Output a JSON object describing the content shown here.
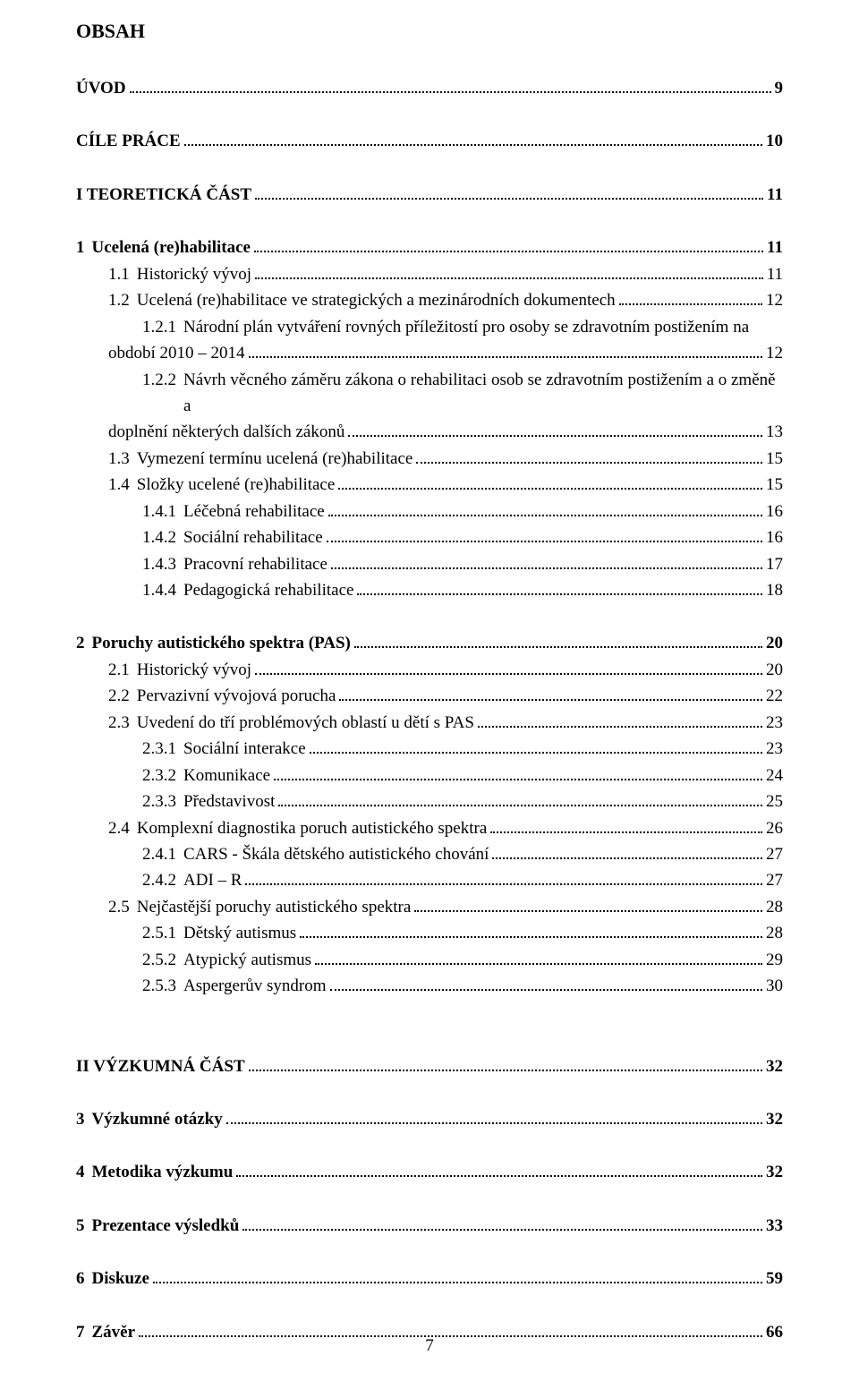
{
  "title": "OBSAH",
  "footer_page": "7",
  "toc": [
    {
      "type": "line",
      "bold": true,
      "indent": 0,
      "num": "",
      "label": "ÚVOD",
      "page": "9"
    },
    {
      "type": "gap",
      "size": "md"
    },
    {
      "type": "line",
      "bold": true,
      "indent": 0,
      "num": "",
      "label": "CÍLE PRÁCE",
      "page": "10"
    },
    {
      "type": "gap",
      "size": "md"
    },
    {
      "type": "line",
      "bold": true,
      "indent": 0,
      "num": "",
      "label": "I TEORETICKÁ ČÁST",
      "page": "11"
    },
    {
      "type": "gap",
      "size": "md"
    },
    {
      "type": "line",
      "bold": true,
      "indent": 0,
      "num": "1",
      "label": "Ucelená (re)habilitace",
      "page": "11"
    },
    {
      "type": "line",
      "bold": false,
      "indent": 1,
      "num": "1.1",
      "label": "Historický vývoj",
      "page": "11"
    },
    {
      "type": "line",
      "bold": false,
      "indent": 1,
      "num": "1.2",
      "label": "Ucelená (re)habilitace ve strategických a mezinárodních dokumentech",
      "page": "12"
    },
    {
      "type": "multi",
      "bold": false,
      "indent": 2,
      "num": "1.2.1",
      "line1": "Národní plán vytváření rovných příležitostí pro osoby se zdravotním postižením na",
      "line2": "období  2010 – 2014",
      "page": "12",
      "hang_indent": 36
    },
    {
      "type": "multi",
      "bold": false,
      "indent": 2,
      "num": "1.2.2",
      "line1": "Návrh věcného záměru zákona o rehabilitaci osob se zdravotním postižením a o změně a",
      "line2": "doplnění některých dalších zákonů",
      "page": "13",
      "hang_indent": 36
    },
    {
      "type": "line",
      "bold": false,
      "indent": 1,
      "num": "1.3",
      "label": "Vymezení termínu ucelená (re)habilitace",
      "page": "15"
    },
    {
      "type": "line",
      "bold": false,
      "indent": 1,
      "num": "1.4",
      "label": "Složky ucelené (re)habilitace",
      "page": "15"
    },
    {
      "type": "line",
      "bold": false,
      "indent": 2,
      "num": "1.4.1",
      "label": "Léčebná rehabilitace",
      "page": "16"
    },
    {
      "type": "line",
      "bold": false,
      "indent": 2,
      "num": "1.4.2",
      "label": "Sociální rehabilitace",
      "page": "16"
    },
    {
      "type": "line",
      "bold": false,
      "indent": 2,
      "num": "1.4.3",
      "label": "Pracovní rehabilitace",
      "page": "17"
    },
    {
      "type": "line",
      "bold": false,
      "indent": 2,
      "num": "1.4.4",
      "label": "Pedagogická rehabilitace",
      "page": "18"
    },
    {
      "type": "gap",
      "size": "md"
    },
    {
      "type": "line",
      "bold": true,
      "indent": 0,
      "num": "2",
      "label": "Poruchy autistického spektra (PAS)",
      "page": "20"
    },
    {
      "type": "line",
      "bold": false,
      "indent": 1,
      "num": "2.1",
      "label": "Historický vývoj",
      "page": "20"
    },
    {
      "type": "line",
      "bold": false,
      "indent": 1,
      "num": "2.2",
      "label": "Pervazivní vývojová porucha",
      "page": "22"
    },
    {
      "type": "line",
      "bold": false,
      "indent": 1,
      "num": "2.3",
      "label": "Uvedení do tří problémových oblastí u dětí s PAS",
      "page": "23"
    },
    {
      "type": "line",
      "bold": false,
      "indent": 2,
      "num": "2.3.1",
      "label": "Sociální interakce",
      "page": "23"
    },
    {
      "type": "line",
      "bold": false,
      "indent": 2,
      "num": "2.3.2",
      "label": "Komunikace",
      "page": "24"
    },
    {
      "type": "line",
      "bold": false,
      "indent": 2,
      "num": "2.3.3",
      "label": "Představivost",
      "page": "25"
    },
    {
      "type": "line",
      "bold": false,
      "indent": 1,
      "num": "2.4",
      "label": "Komplexní diagnostika poruch autistického spektra",
      "page": "26"
    },
    {
      "type": "line",
      "bold": false,
      "indent": 2,
      "num": "2.4.1",
      "label": "CARS - Škála dětského autistického chování",
      "page": "27"
    },
    {
      "type": "line",
      "bold": false,
      "indent": 2,
      "num": "2.4.2",
      "label": "ADI – R",
      "page": "27"
    },
    {
      "type": "line",
      "bold": false,
      "indent": 1,
      "num": "2.5",
      "label": "Nejčastější poruchy autistického spektra",
      "page": "28"
    },
    {
      "type": "line",
      "bold": false,
      "indent": 2,
      "num": "2.5.1",
      "label": "Dětský autismus",
      "page": "28"
    },
    {
      "type": "line",
      "bold": false,
      "indent": 2,
      "num": "2.5.2",
      "label": "Atypický autismus",
      "page": "29"
    },
    {
      "type": "line",
      "bold": false,
      "indent": 2,
      "num": "2.5.3",
      "label": "Aspergerův syndrom",
      "page": "30"
    },
    {
      "type": "gap",
      "size": "md"
    },
    {
      "type": "gap",
      "size": "md"
    },
    {
      "type": "line",
      "bold": true,
      "indent": 0,
      "num": "",
      "label": "II VÝZKUMNÁ ČÁST",
      "page": "32"
    },
    {
      "type": "gap",
      "size": "md"
    },
    {
      "type": "line",
      "bold": true,
      "indent": 0,
      "num": "3",
      "label": "Výzkumné otázky",
      "page": "32"
    },
    {
      "type": "gap",
      "size": "md"
    },
    {
      "type": "line",
      "bold": true,
      "indent": 0,
      "num": "4",
      "label": "Metodika výzkumu",
      "page": "32"
    },
    {
      "type": "gap",
      "size": "md"
    },
    {
      "type": "line",
      "bold": true,
      "indent": 0,
      "num": "5",
      "label": "Prezentace výsledků",
      "page": "33"
    },
    {
      "type": "gap",
      "size": "md"
    },
    {
      "type": "line",
      "bold": true,
      "indent": 0,
      "num": "6",
      "label": "Diskuze",
      "page": "59"
    },
    {
      "type": "gap",
      "size": "md"
    },
    {
      "type": "line",
      "bold": true,
      "indent": 0,
      "num": "7",
      "label": "Závěr",
      "page": "66"
    }
  ]
}
